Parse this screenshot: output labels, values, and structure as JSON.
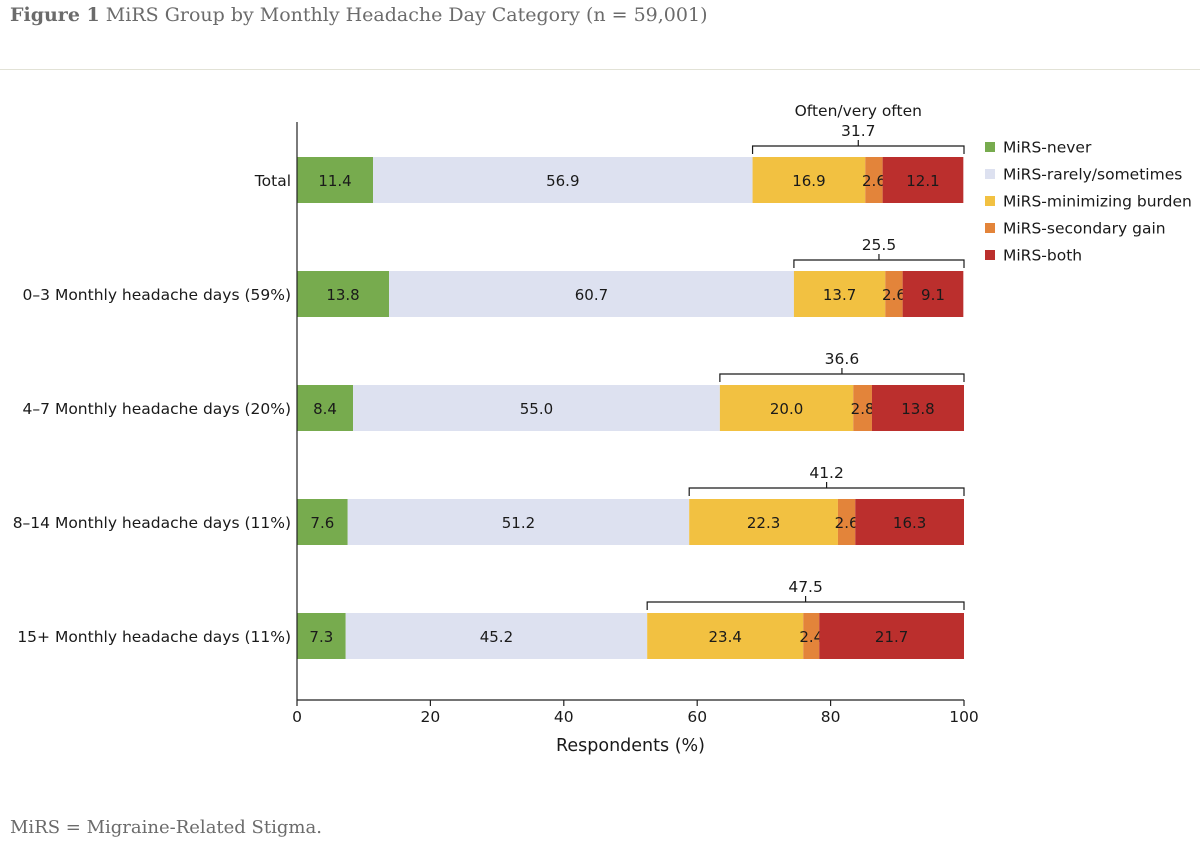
{
  "figure": {
    "label": "Figure 1",
    "title": "MiRS Group by Monthly Headache Day Category (n = 59,001)",
    "footnote": "MiRS = Migraine-Related Stigma."
  },
  "colors": {
    "never": "#77ab4e",
    "rarely": "#dde1f0",
    "minimizing": "#f2c141",
    "secondary": "#e3843a",
    "both": "#bb2f2d",
    "axis": "#222222"
  },
  "chart_data": {
    "type": "bar",
    "orientation": "horizontal",
    "stacked": true,
    "xlabel": "Respondents (%)",
    "xlim": [
      0,
      100
    ],
    "xticks": [
      0,
      20,
      40,
      60,
      80,
      100
    ],
    "categories": [
      "Total",
      "0–3 Monthly headache days (59%)",
      "4–7 Monthly headache days (20%)",
      "8–14 Monthly headache days (11%)",
      "15+ Monthly headache days (11%)"
    ],
    "series": [
      {
        "name": "MiRS-never",
        "color_key": "never",
        "values": [
          11.4,
          13.8,
          8.4,
          7.6,
          7.3
        ]
      },
      {
        "name": "MiRS-rarely/sometimes",
        "color_key": "rarely",
        "values": [
          56.9,
          60.7,
          55.0,
          51.2,
          45.2
        ]
      },
      {
        "name": "MiRS-minimizing burden",
        "color_key": "minimizing",
        "values": [
          16.9,
          13.7,
          20.0,
          22.3,
          23.4
        ]
      },
      {
        "name": "MiRS-secondary gain",
        "color_key": "secondary",
        "values": [
          2.6,
          2.6,
          2.8,
          2.6,
          2.4
        ]
      },
      {
        "name": "MiRS-both",
        "color_key": "both",
        "values": [
          12.1,
          9.1,
          13.8,
          16.3,
          21.7
        ]
      }
    ],
    "labels": [
      [
        "11.4",
        "56.9",
        "16.9",
        "2.6",
        "12.1"
      ],
      [
        "13.8",
        "60.7",
        "13.7",
        "2.6",
        "9.1"
      ],
      [
        "8.4",
        "55.0",
        "20.0",
        "2.8",
        "13.8"
      ],
      [
        "7.6",
        "51.2",
        "22.3",
        "2.6",
        "16.3"
      ],
      [
        "7.3",
        "45.2",
        "23.4",
        "2.4",
        "21.7"
      ]
    ],
    "bracket_heading": "Often/very often",
    "bracket_values": [
      "31.7",
      "25.5",
      "36.6",
      "41.2",
      "47.5"
    ],
    "legend_position": "top-right"
  }
}
